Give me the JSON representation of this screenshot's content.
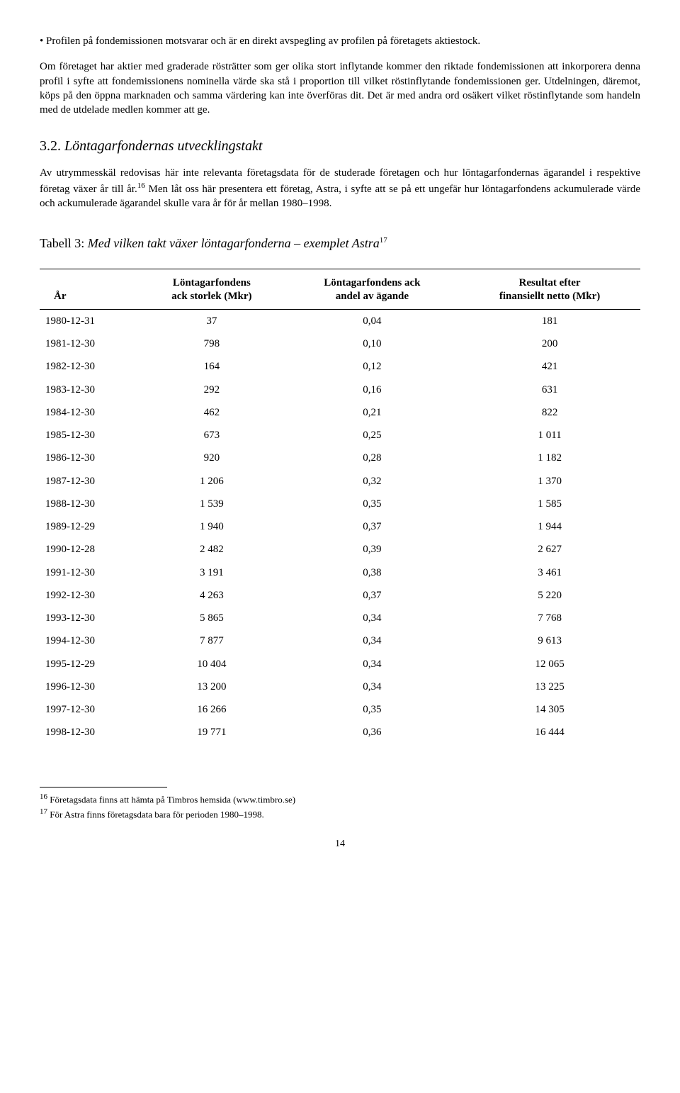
{
  "bullet_marker": "•",
  "bullet_text": "Profilen på fondemissionen motsvarar och är en direkt avspegling av profilen på företagets aktiestock.",
  "para1": "Om företaget har aktier med graderade rösträtter som ger olika stort inflytande kommer den riktade fondemissionen att inkorporera denna profil i syfte att fondemissionens nominella värde ska stå i proportion till vilket röstinflytande fondemissionen ger. Utdelningen, däremot, köps på den öppna marknaden och samma värdering kan inte överföras dit. Det är med andra ord osäkert vilket röstinflytande som handeln med de utdelade medlen kommer att ge.",
  "section_num": "3.2.",
  "section_title": "Löntagarfondernas utvecklingstakt",
  "para2a": "Av utrymmesskäl redovisas här inte relevanta företagsdata för de studerade företagen och hur löntagarfondernas ägarandel i respektive företag växer år till år.",
  "fn16_marker": "16",
  "para2b": "Men låt oss här presentera ett företag, Astra, i syfte att se på ett ungefär hur löntagarfondens ackumulerade värde och ackumulerade ägarandel skulle vara år för år mellan 1980–1998.",
  "table_prefix": "Tabell 3:",
  "table_title": "Med vilken takt växer löntagarfonderna – exemplet Astra",
  "fn17_marker": "17",
  "table": {
    "columns": [
      "År",
      "Löntagarfondens ack storlek (Mkr)",
      "Löntagarfondens ack andel av ägande",
      "Resultat efter finansiellt netto (Mkr)"
    ],
    "col0_header_line1": "År",
    "col1_header_line1": "Löntagarfondens",
    "col1_header_line2": "ack storlek (Mkr)",
    "col2_header_line1": "Löntagarfondens ack",
    "col2_header_line2": "andel av ägande",
    "col3_header_line1": "Resultat efter",
    "col3_header_line2": "finansiellt netto (Mkr)",
    "rows": [
      [
        "1980-12-31",
        "37",
        "0,04",
        "181"
      ],
      [
        "1981-12-30",
        "798",
        "0,10",
        "200"
      ],
      [
        "1982-12-30",
        "164",
        "0,12",
        "421"
      ],
      [
        "1983-12-30",
        "292",
        "0,16",
        "631"
      ],
      [
        "1984-12-30",
        "462",
        "0,21",
        "822"
      ],
      [
        "1985-12-30",
        "673",
        "0,25",
        "1 011"
      ],
      [
        "1986-12-30",
        "920",
        "0,28",
        "1 182"
      ],
      [
        "1987-12-30",
        "1 206",
        "0,32",
        "1 370"
      ],
      [
        "1988-12-30",
        "1 539",
        "0,35",
        "1 585"
      ],
      [
        "1989-12-29",
        "1 940",
        "0,37",
        "1 944"
      ],
      [
        "1990-12-28",
        "2 482",
        "0,39",
        "2 627"
      ],
      [
        "1991-12-30",
        "3 191",
        "0,38",
        "3 461"
      ],
      [
        "1992-12-30",
        "4 263",
        "0,37",
        "5 220"
      ],
      [
        "1993-12-30",
        "5 865",
        "0,34",
        "7 768"
      ],
      [
        "1994-12-30",
        "7 877",
        "0,34",
        "9 613"
      ],
      [
        "1995-12-29",
        "10 404",
        "0,34",
        "12 065"
      ],
      [
        "1996-12-30",
        "13 200",
        "0,34",
        "13 225"
      ],
      [
        "1997-12-30",
        "16 266",
        "0,35",
        "14 305"
      ],
      [
        "1998-12-30",
        "19 771",
        "0,36",
        "16 444"
      ]
    ]
  },
  "fn16_num": "16",
  "fn16_text": "Företagsdata finns att hämta på Timbros hemsida (www.timbro.se)",
  "fn17_num": "17",
  "fn17_text": "För Astra finns företagsdata bara för perioden 1980–1998.",
  "page_number": "14"
}
